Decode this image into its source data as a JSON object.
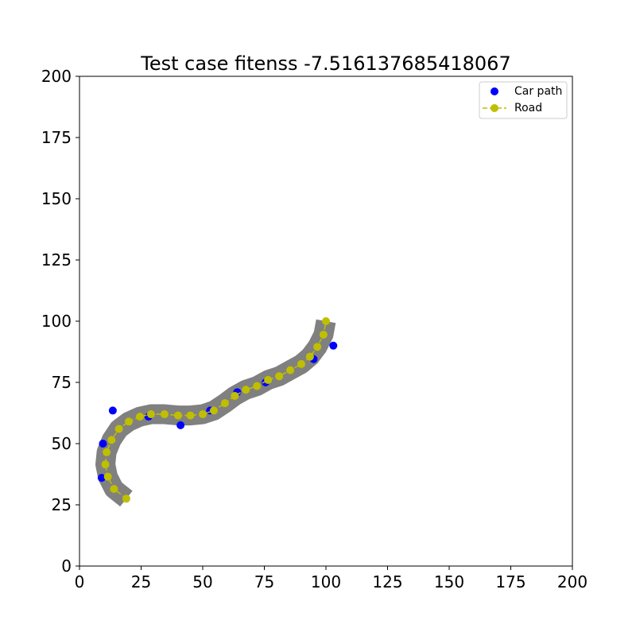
{
  "chart_data": {
    "type": "scatter",
    "title": "Test case fitenss -7.516137685418067",
    "xlabel": "",
    "ylabel": "",
    "xlim": [
      0,
      200
    ],
    "ylim": [
      0,
      200
    ],
    "xticks": [
      "0",
      "25",
      "50",
      "75",
      "100",
      "125",
      "150",
      "175",
      "200"
    ],
    "yticks": [
      "0",
      "25",
      "50",
      "75",
      "100",
      "125",
      "150",
      "175",
      "200"
    ],
    "grid": false,
    "legend_position": "top-right",
    "road_area_color": "#808080",
    "series": [
      {
        "name": "Car path",
        "marker": "circle",
        "line": "none",
        "color": "#0000ff",
        "points": [
          [
            9,
            36
          ],
          [
            9.5,
            50
          ],
          [
            13.5,
            63.5
          ],
          [
            28,
            61
          ],
          [
            41,
            57.5
          ],
          [
            53,
            63.5
          ],
          [
            64,
            71
          ],
          [
            75.5,
            75
          ],
          [
            95,
            84.5
          ],
          [
            103,
            90
          ]
        ]
      },
      {
        "name": "Road",
        "marker": "circle",
        "line": "dashed",
        "color": "#bfbf00",
        "points": [
          [
            19,
            27.5
          ],
          [
            14,
            31.5
          ],
          [
            11.5,
            36.5
          ],
          [
            10.5,
            41.5
          ],
          [
            11,
            46.5
          ],
          [
            13,
            51.5
          ],
          [
            16,
            56
          ],
          [
            20,
            59
          ],
          [
            24.5,
            61
          ],
          [
            29,
            62
          ],
          [
            34.5,
            62
          ],
          [
            40,
            61.5
          ],
          [
            45,
            61.5
          ],
          [
            50,
            62
          ],
          [
            54.5,
            63.5
          ],
          [
            59,
            66.5
          ],
          [
            63,
            69.5
          ],
          [
            67.5,
            72
          ],
          [
            72,
            73.5
          ],
          [
            76.5,
            76
          ],
          [
            81,
            77.5
          ],
          [
            85.5,
            80
          ],
          [
            90,
            82.5
          ],
          [
            93.5,
            85.5
          ],
          [
            96.5,
            89.5
          ],
          [
            99,
            94.5
          ],
          [
            100,
            100
          ]
        ]
      }
    ]
  }
}
